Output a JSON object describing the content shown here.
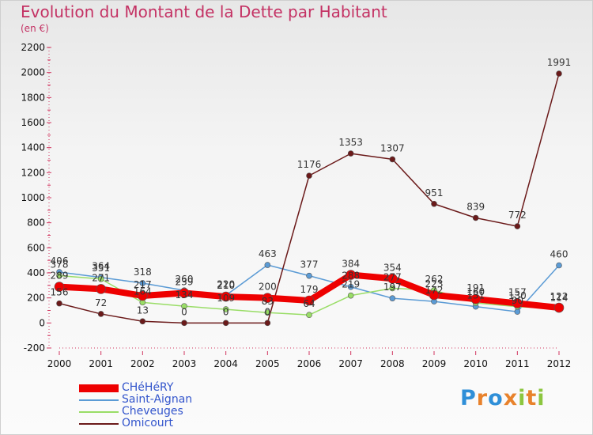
{
  "title": "Evolution du Montant de la Dette par Habitant",
  "subtitle": "(en €)",
  "logo": {
    "letters": [
      "P",
      "r",
      "o",
      "x",
      "i",
      "t",
      "i"
    ],
    "colors": [
      "#2f8fd8",
      "#e8822c",
      "#2f8fd8",
      "#e8822c",
      "#8cc63f",
      "#e8822c",
      "#8cc63f"
    ]
  },
  "chart_data": {
    "type": "line",
    "title": "Evolution du Montant de la Dette par Habitant",
    "subtitle": "(en €)",
    "x": [
      "2000",
      "2001",
      "2002",
      "2003",
      "2004",
      "2005",
      "2006",
      "2007",
      "2008",
      "2009",
      "2010",
      "2011",
      "2012"
    ],
    "ylim": [
      -200,
      2200
    ],
    "yticks": [
      -200,
      0,
      200,
      400,
      600,
      800,
      1000,
      1200,
      1400,
      1600,
      1800,
      2000,
      2200
    ],
    "grid": false,
    "legend_position": "bottom-left",
    "series": [
      {
        "name": "CHéHéRY",
        "color": "#ee0000",
        "values": [
          289,
          271,
          217,
          239,
          210,
          200,
          179,
          384,
          354,
          223,
          191,
          157,
          122
        ]
      },
      {
        "name": "Saint-Aignan",
        "color": "#5b9bd5",
        "values": [
          406,
          364,
          318,
          260,
          220,
          463,
          377,
          288,
          197,
          172,
          131,
          90,
          460
        ]
      },
      {
        "name": "Cheveuges",
        "color": "#99dd66",
        "values": [
          378,
          351,
          164,
          134,
          109,
          83,
          64,
          219,
          277,
          262,
          160,
          130,
          114
        ]
      },
      {
        "name": "Omicourt",
        "color": "#6b1a1a",
        "values": [
          156,
          72,
          13,
          0,
          0,
          0,
          1176,
          1353,
          1307,
          951,
          839,
          772,
          1991
        ]
      }
    ]
  }
}
